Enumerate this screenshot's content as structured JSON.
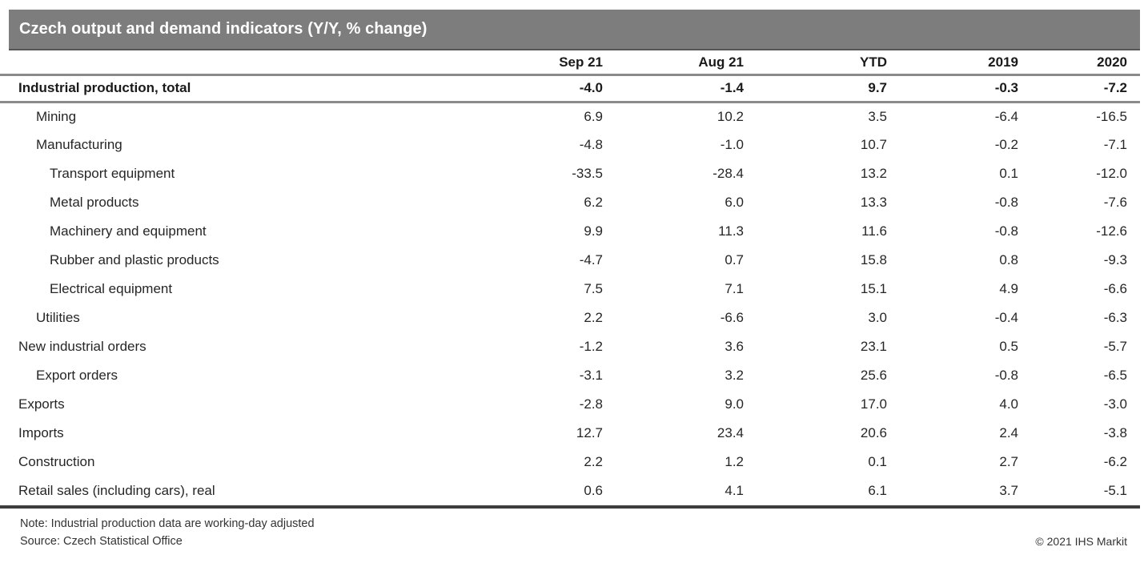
{
  "chart_data": {
    "type": "table",
    "title": "Czech output and demand indicators (Y/Y, % change)",
    "columns": [
      "Sep 21",
      "Aug 21",
      "YTD",
      "2019",
      "2020"
    ],
    "rows": [
      {
        "label": "Industrial production, total",
        "indent": 0,
        "bold": true,
        "values": [
          "-4.0",
          "-1.4",
          "9.7",
          "-0.3",
          "-7.2"
        ]
      },
      {
        "label": "Mining",
        "indent": 1,
        "bold": false,
        "values": [
          "6.9",
          "10.2",
          "3.5",
          "-6.4",
          "-16.5"
        ]
      },
      {
        "label": "Manufacturing",
        "indent": 1,
        "bold": false,
        "values": [
          "-4.8",
          "-1.0",
          "10.7",
          "-0.2",
          "-7.1"
        ]
      },
      {
        "label": "Transport equipment",
        "indent": 2,
        "bold": false,
        "values": [
          "-33.5",
          "-28.4",
          "13.2",
          "0.1",
          "-12.0"
        ]
      },
      {
        "label": "Metal products",
        "indent": 2,
        "bold": false,
        "values": [
          "6.2",
          "6.0",
          "13.3",
          "-0.8",
          "-7.6"
        ]
      },
      {
        "label": "Machinery and equipment",
        "indent": 2,
        "bold": false,
        "values": [
          "9.9",
          "11.3",
          "11.6",
          "-0.8",
          "-12.6"
        ]
      },
      {
        "label": "Rubber and plastic products",
        "indent": 2,
        "bold": false,
        "values": [
          "-4.7",
          "0.7",
          "15.8",
          "0.8",
          "-9.3"
        ]
      },
      {
        "label": "Electrical equipment",
        "indent": 2,
        "bold": false,
        "values": [
          "7.5",
          "7.1",
          "15.1",
          "4.9",
          "-6.6"
        ]
      },
      {
        "label": "Utilities",
        "indent": 1,
        "bold": false,
        "values": [
          "2.2",
          "-6.6",
          "3.0",
          "-0.4",
          "-6.3"
        ]
      },
      {
        "label": "New industrial orders",
        "indent": 0,
        "bold": false,
        "values": [
          "-1.2",
          "3.6",
          "23.1",
          "0.5",
          "-5.7"
        ]
      },
      {
        "label": "Export orders",
        "indent": 1,
        "bold": false,
        "values": [
          "-3.1",
          "3.2",
          "25.6",
          "-0.8",
          "-6.5"
        ]
      },
      {
        "label": "Exports",
        "indent": 0,
        "bold": false,
        "values": [
          "-2.8",
          "9.0",
          "17.0",
          "4.0",
          "-3.0"
        ]
      },
      {
        "label": "Imports",
        "indent": 0,
        "bold": false,
        "values": [
          "12.7",
          "23.4",
          "20.6",
          "2.4",
          "-3.8"
        ]
      },
      {
        "label": "Construction",
        "indent": 0,
        "bold": false,
        "values": [
          "2.2",
          "1.2",
          "0.1",
          "2.7",
          "-6.2"
        ]
      },
      {
        "label": "Retail sales (including cars), real",
        "indent": 0,
        "bold": false,
        "values": [
          "0.6",
          "4.1",
          "6.1",
          "3.7",
          "-5.1"
        ]
      }
    ]
  },
  "footer": {
    "note": "Note: Industrial production data are working-day adjusted",
    "source": "Source: Czech Statistical Office",
    "copyright": "© 2021 IHS Markit"
  },
  "colors": {
    "title_bar_bg": "#7d7d7d",
    "title_text": "#ffffff",
    "rule_gray": "#8a8a8a",
    "rule_dark": "#3d3d3d",
    "text": "#262626"
  }
}
